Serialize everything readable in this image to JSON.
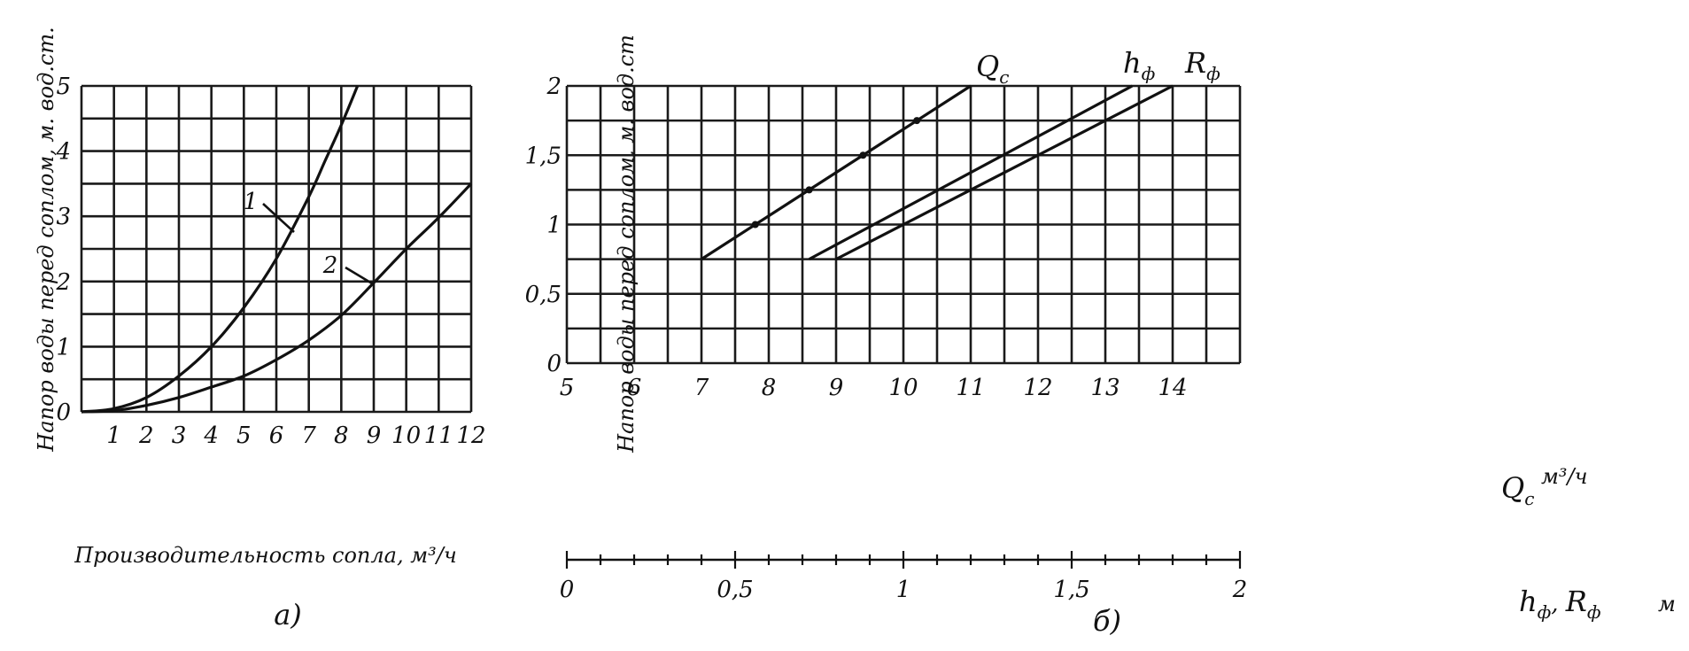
{
  "chart_data": [
    {
      "type": "line",
      "panel_label": "а)",
      "xlabel": "Производительность сопла, м³/ч",
      "ylabel": "Напор воды перед соплом, м. вод.ст.",
      "xlim": [
        0,
        12
      ],
      "ylim": [
        0,
        5
      ],
      "x_ticks": [
        "1",
        "2",
        "3",
        "4",
        "5",
        "6",
        "7",
        "8",
        "9",
        "10",
        "11",
        "12"
      ],
      "y_ticks": [
        "0",
        "1",
        "2",
        "3",
        "4",
        "5"
      ],
      "grid": true,
      "series": [
        {
          "name": "1",
          "x": [
            0,
            1,
            2,
            3,
            4,
            5,
            6,
            7,
            7.5,
            8,
            8.5
          ],
          "y": [
            0,
            0.05,
            0.22,
            0.55,
            1.0,
            1.6,
            2.35,
            3.3,
            3.85,
            4.4,
            5.0
          ]
        },
        {
          "name": "2",
          "x": [
            0,
            1,
            2,
            3,
            4,
            5,
            6,
            7,
            8,
            9,
            10,
            11,
            12
          ],
          "y": [
            0,
            0.02,
            0.1,
            0.22,
            0.38,
            0.55,
            0.8,
            1.1,
            1.48,
            1.98,
            2.5,
            2.98,
            3.5
          ]
        }
      ]
    },
    {
      "type": "line",
      "panel_label": "б)",
      "ylabel": "Напор воды перед соплом, м. вод.ст",
      "ylim": [
        0,
        2
      ],
      "y_ticks": [
        "0",
        "0,5",
        "1",
        "1,5",
        "2"
      ],
      "grid": true,
      "x_axis_top": {
        "label": "Q",
        "label_sub": "с",
        "unit": "м³/ч",
        "range": [
          5,
          15
        ],
        "ticks": [
          "5",
          "6",
          "7",
          "8",
          "9",
          "10",
          "11",
          "12",
          "13",
          "14"
        ]
      },
      "x_axis_bottom": {
        "label": "h",
        "label_sub": "ф",
        "label2": "R",
        "label2_sub": "ф",
        "unit": "м",
        "range": [
          0,
          2
        ],
        "ticks": [
          "0",
          "0,5",
          "1",
          "1,5",
          "2"
        ]
      },
      "series": [
        {
          "name": "Q",
          "name_sub": "с",
          "axis": "top",
          "x": [
            7,
            11
          ],
          "y": [
            0.75,
            2.0
          ]
        },
        {
          "name": "h",
          "name_sub": "ф",
          "axis": "bottom",
          "x": [
            0.72,
            1.68
          ],
          "y": [
            0.75,
            2.0
          ]
        },
        {
          "name": "R",
          "name_sub": "ф",
          "axis": "bottom",
          "x": [
            0.8,
            1.8
          ],
          "y": [
            0.75,
            2.0
          ]
        }
      ]
    }
  ]
}
